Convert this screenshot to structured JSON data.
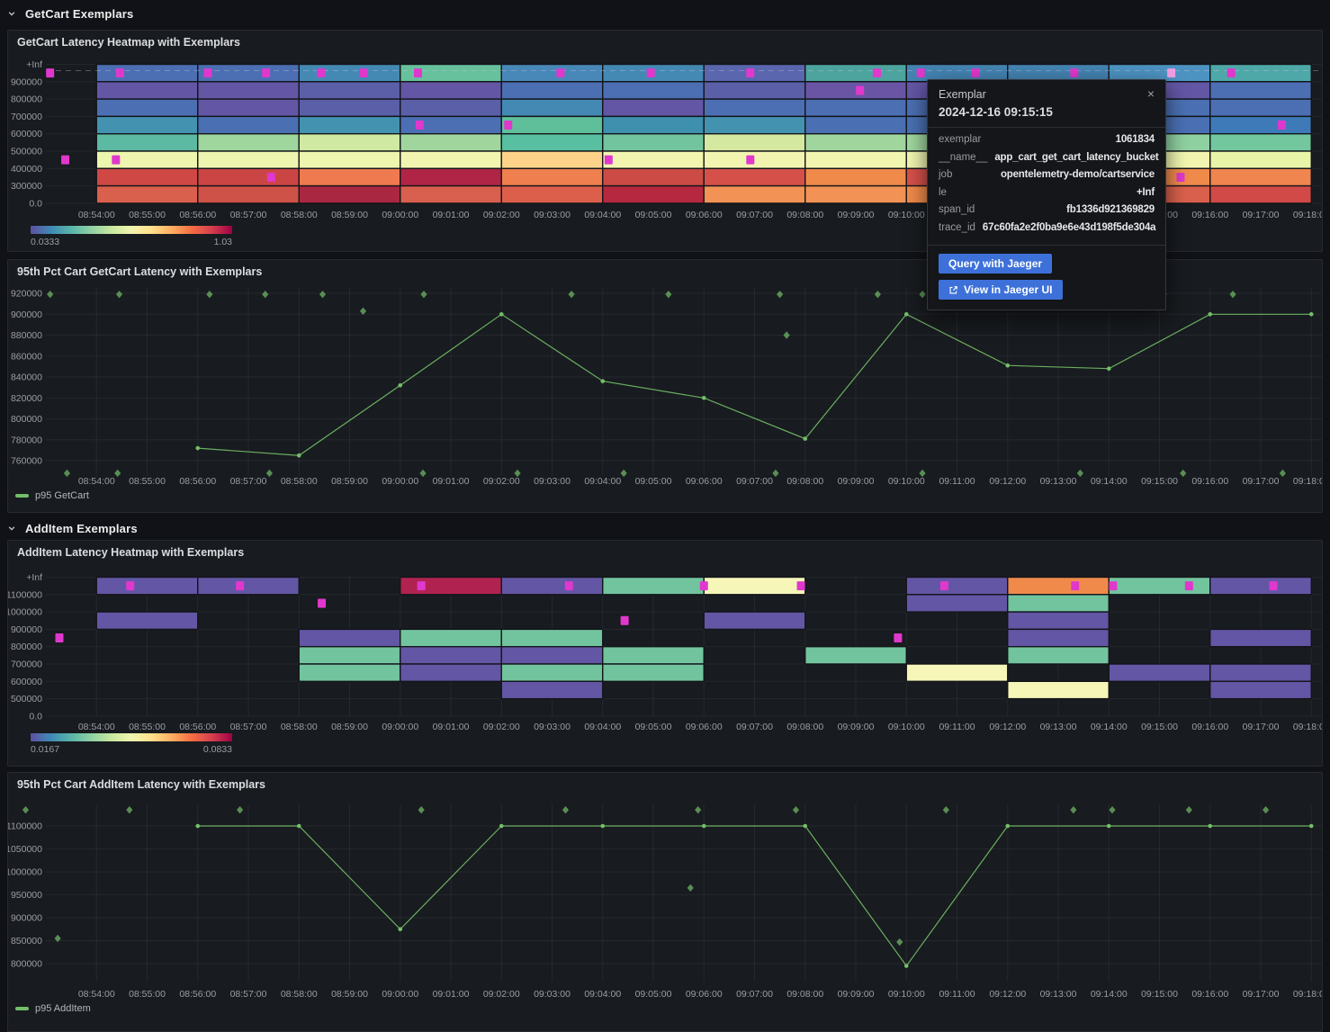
{
  "page": {
    "bg": "#111217",
    "accent": "#3d71d9",
    "series_green": "#73bf69",
    "exemplar_color": "#e038cd",
    "exemplar_highlight": "#f2a0e4"
  },
  "sections": [
    {
      "title": "GetCart Exemplars"
    },
    {
      "title": "AddItem Exemplars"
    }
  ],
  "time_axis": {
    "start": "08:53:00",
    "ticks": [
      "08:54:00",
      "08:55:00",
      "08:56:00",
      "08:57:00",
      "08:58:00",
      "08:59:00",
      "09:00:00",
      "09:01:00",
      "09:02:00",
      "09:03:00",
      "09:04:00",
      "09:05:00",
      "09:06:00",
      "09:07:00",
      "09:08:00",
      "09:09:00",
      "09:10:00",
      "09:11:00",
      "09:12:00",
      "09:13:00",
      "09:14:00",
      "09:15:00",
      "09:16:00",
      "09:17:00",
      "09:18:00"
    ]
  },
  "tooltip": {
    "title": "Exemplar",
    "timestamp": "2024-12-16 09:15:15",
    "close_label": "×",
    "fields": [
      {
        "label": "exemplar",
        "value": "1061834"
      },
      {
        "label": "__name__",
        "value": "app_cart_get_cart_latency_bucket"
      },
      {
        "label": "job",
        "value": "opentelemetry-demo/cartservice"
      },
      {
        "label": "le",
        "value": "+Inf"
      },
      {
        "label": "span_id",
        "value": "fb1336d921369829"
      },
      {
        "label": "trace_id",
        "value": "67c60fa2e2f0ba9e6e43d198f5de304a"
      }
    ],
    "buttons": [
      {
        "label": "Query with Jaeger"
      },
      {
        "label": "View in Jaeger UI",
        "icon": "external-link-icon"
      }
    ]
  },
  "chart_data": [
    {
      "type": "heatmap",
      "title": "GetCart Latency Heatmap with Exemplars",
      "y_ticks": [
        "+Inf",
        "900000",
        "800000",
        "700000",
        "600000",
        "500000",
        "400000",
        "300000",
        "0.0"
      ],
      "column_minutes": 2,
      "columns": [
        "08:54:00",
        "08:56:00",
        "08:58:00",
        "09:00:00",
        "09:02:00",
        "09:04:00",
        "09:06:00",
        "09:08:00",
        "09:10:00",
        "09:12:00",
        "09:14:00",
        "09:16:00"
      ],
      "cells": [
        [
          "#4c6fb3",
          "#4c6fb3",
          "#4489b3",
          "#67c19c",
          "#4888b8",
          "#4489b3",
          "#5a66ae",
          "#4da49e",
          "#4484b2",
          "#4484b2",
          "#4d93c2",
          "#4fa8a8"
        ],
        [
          "#6356a5",
          "#6356a5",
          "#5a5fa8",
          "#6356a5",
          "#4c6fb3",
          "#4c6fb3",
          "#5a5fa8",
          "#6a55a5",
          "#6356a5",
          "#6356a5",
          "#6356a5",
          "#4c6fb3"
        ],
        [
          "#4c6fb3",
          "#6356a5",
          "#5a5fa8",
          "#5a5fa8",
          "#4489b3",
          "#6356a5",
          "#4c6fb3",
          "#4c6fb3",
          "#4c6fb3",
          "#4c6fb3",
          "#4a70b3",
          "#4c6fb3"
        ],
        [
          "#4392b0",
          "#4a70b3",
          "#4392b0",
          "#4c6fb3",
          "#5fbf9a",
          "#3f8fae",
          "#4392b0",
          "#4a70b3",
          "#4a70b3",
          "#4392b0",
          "#4a70b3",
          "#3f7ab8"
        ],
        [
          "#5cb9a2",
          "#9ed69e",
          "#cfe8a2",
          "#a0d69e",
          "#58bfa0",
          "#72c49e",
          "#d4e8a0",
          "#a0d69e",
          "#a0d69e",
          "#5cb9a2",
          "#8fd0a0",
          "#72c79e"
        ],
        [
          "#eef5ae",
          "#eef5ae",
          "#eef5ae",
          "#f2f5b0",
          "#fdd389",
          "#f2f5b0",
          "#f2f5b0",
          "#f2f5b0",
          "#f2f5b0",
          "#f2f5b0",
          "#f2f5b0",
          "#e8f5a8"
        ],
        [
          "#cf4846",
          "#cc4545",
          "#ef7a50",
          "#b02545",
          "#ef7f4f",
          "#cc4b45",
          "#d6504a",
          "#f08a4b",
          "#d6504a",
          "#f08a4b",
          "#f08a4b",
          "#f0854f"
        ],
        [
          "#d9604c",
          "#cf5248",
          "#aa2742",
          "#d95f4e",
          "#dc5f4c",
          "#b5283f",
          "#f29355",
          "#f29355",
          "#f08a4b",
          "#d6504a",
          "#d9604c",
          "#d14a48"
        ]
      ],
      "exemplars": [
        {
          "t": "08:53:05",
          "row": 0
        },
        {
          "t": "08:54:28",
          "row": 0
        },
        {
          "t": "08:56:12",
          "row": 0
        },
        {
          "t": "08:57:21",
          "row": 0
        },
        {
          "t": "08:58:26",
          "row": 0
        },
        {
          "t": "08:59:17",
          "row": 0
        },
        {
          "t": "09:00:21",
          "row": 0
        },
        {
          "t": "09:03:10",
          "row": 0
        },
        {
          "t": "09:04:57",
          "row": 0
        },
        {
          "t": "09:06:55",
          "row": 0
        },
        {
          "t": "09:09:25",
          "row": 0
        },
        {
          "t": "09:10:17",
          "row": 0
        },
        {
          "t": "09:11:22",
          "row": 0
        },
        {
          "t": "09:13:19",
          "row": 0
        },
        {
          "t": "09:15:14",
          "row": 0,
          "highlight": true
        },
        {
          "t": "09:16:25",
          "row": 0
        },
        {
          "t": "09:09:05",
          "row": 1
        },
        {
          "t": "09:00:23",
          "row": 3
        },
        {
          "t": "09:02:08",
          "row": 3
        },
        {
          "t": "09:17:25",
          "row": 3
        },
        {
          "t": "08:53:23",
          "row": 5
        },
        {
          "t": "08:54:23",
          "row": 5
        },
        {
          "t": "09:04:07",
          "row": 5
        },
        {
          "t": "09:06:55",
          "row": 5
        },
        {
          "t": "08:57:27",
          "row": 6
        },
        {
          "t": "09:15:25",
          "row": 6
        }
      ],
      "dashed_marker_row": 0,
      "colorbar": {
        "min": "0.0333",
        "max": "1.03",
        "gradient": [
          "#5e4fa2",
          "#3f8ab5",
          "#58b5a9",
          "#8fd1a4",
          "#c7e89e",
          "#f2f5ae",
          "#fee08b",
          "#fdae61",
          "#f46d43",
          "#d53e4f",
          "#9e0142"
        ]
      }
    },
    {
      "type": "line",
      "title": "95th Pct Cart GetCart Latency with Exemplars",
      "y_ticks": [
        "920000",
        "900000",
        "880000",
        "860000",
        "840000",
        "820000",
        "800000",
        "780000",
        "760000"
      ],
      "series": [
        {
          "name": "p95 GetCart",
          "color": "#73bf69",
          "points": [
            [
              "08:56:00",
              772000
            ],
            [
              "08:58:00",
              765000
            ],
            [
              "09:00:00",
              832000
            ],
            [
              "09:02:00",
              900000
            ],
            [
              "09:04:00",
              836000
            ],
            [
              "09:06:00",
              820000
            ],
            [
              "09:08:00",
              781000
            ],
            [
              "09:10:00",
              900000
            ],
            [
              "09:12:00",
              851000
            ],
            [
              "09:14:00",
              848000
            ],
            [
              "09:16:00",
              900000
            ],
            [
              "09:18:00",
              900000
            ]
          ]
        }
      ],
      "exemplars": [
        {
          "t": "08:53:05",
          "v": 919000
        },
        {
          "t": "08:54:27",
          "v": 919000
        },
        {
          "t": "08:56:14",
          "v": 919000
        },
        {
          "t": "08:57:20",
          "v": 919000
        },
        {
          "t": "08:58:28",
          "v": 919000
        },
        {
          "t": "09:00:28",
          "v": 919000
        },
        {
          "t": "09:03:23",
          "v": 919000
        },
        {
          "t": "09:05:18",
          "v": 919000
        },
        {
          "t": "09:07:30",
          "v": 919000
        },
        {
          "t": "09:09:26",
          "v": 919000
        },
        {
          "t": "09:10:19",
          "v": 919000
        },
        {
          "t": "09:15:05",
          "v": 919000
        },
        {
          "t": "09:16:27",
          "v": 919000
        },
        {
          "t": "08:59:16",
          "v": 903000
        },
        {
          "t": "09:07:38",
          "v": 880000
        },
        {
          "t": "08:53:25",
          "v": 748000
        },
        {
          "t": "08:54:25",
          "v": 748000
        },
        {
          "t": "08:57:25",
          "v": 748000
        },
        {
          "t": "09:00:27",
          "v": 748000
        },
        {
          "t": "09:02:19",
          "v": 748000
        },
        {
          "t": "09:04:25",
          "v": 748000
        },
        {
          "t": "09:07:25",
          "v": 748000
        },
        {
          "t": "09:10:19",
          "v": 748000
        },
        {
          "t": "09:13:26",
          "v": 748000
        },
        {
          "t": "09:15:28",
          "v": 748000
        },
        {
          "t": "09:17:26",
          "v": 748000
        }
      ]
    },
    {
      "type": "heatmap",
      "title": "AddItem Latency Heatmap with Exemplars",
      "y_ticks": [
        "+Inf",
        "1100000",
        "1000000",
        "900000",
        "800000",
        "700000",
        "600000",
        "500000",
        "0.0"
      ],
      "column_minutes": 2,
      "columns": [
        "08:54:00",
        "08:56:00",
        "08:58:00",
        "09:00:00",
        "09:02:00",
        "09:04:00",
        "09:06:00",
        "09:08:00",
        "09:10:00",
        "09:12:00",
        "09:14:00",
        "09:16:00"
      ],
      "cells": [
        [
          "#6356a5",
          "#6356a5",
          null,
          "#b02350",
          "#6356a5",
          "#72c49e",
          "#f5f6b8",
          null,
          "#6356a5",
          "#f08a4b",
          "#72c49e",
          "#6356a5"
        ],
        [
          null,
          null,
          null,
          null,
          null,
          null,
          null,
          null,
          "#6356a5",
          "#72c49e",
          null,
          null
        ],
        [
          "#6356a5",
          null,
          null,
          null,
          null,
          null,
          "#6356a5",
          null,
          null,
          "#6356a5",
          null,
          null
        ],
        [
          null,
          null,
          "#6356a5",
          "#72c49e",
          "#72c49e",
          null,
          null,
          null,
          null,
          "#6356a5",
          null,
          "#6356a5"
        ],
        [
          null,
          null,
          "#72c49e",
          "#6356a5",
          "#6356a5",
          "#72c49e",
          null,
          "#72c49e",
          null,
          "#72c49e",
          null,
          null
        ],
        [
          null,
          null,
          "#72c49e",
          "#6356a5",
          "#72c49e",
          "#72c49e",
          null,
          null,
          "#f5f6b8",
          null,
          "#6356a5",
          "#6356a5"
        ],
        [
          null,
          null,
          null,
          null,
          "#6356a5",
          null,
          null,
          null,
          null,
          "#f5f6b8",
          null,
          "#6356a5"
        ],
        [
          null,
          null,
          null,
          null,
          null,
          null,
          null,
          null,
          null,
          null,
          null,
          null
        ]
      ],
      "exemplars": [
        {
          "t": "08:54:40",
          "row": 0
        },
        {
          "t": "08:56:50",
          "row": 0
        },
        {
          "t": "09:00:25",
          "row": 0
        },
        {
          "t": "09:03:20",
          "row": 0
        },
        {
          "t": "09:06:00",
          "row": 0
        },
        {
          "t": "09:07:55",
          "row": 0
        },
        {
          "t": "09:10:45",
          "row": 0
        },
        {
          "t": "09:13:20",
          "row": 0
        },
        {
          "t": "09:14:05",
          "row": 0
        },
        {
          "t": "09:15:35",
          "row": 0
        },
        {
          "t": "09:17:15",
          "row": 0
        },
        {
          "t": "08:58:27",
          "row": 1
        },
        {
          "t": "09:04:26",
          "row": 2
        },
        {
          "t": "08:53:16",
          "row": 3
        },
        {
          "t": "09:09:50",
          "row": 3
        }
      ],
      "colorbar": {
        "min": "0.0167",
        "max": "0.0833",
        "gradient": [
          "#5e4fa2",
          "#3f8ab5",
          "#58b5a9",
          "#8fd1a4",
          "#c7e89e",
          "#f2f5ae",
          "#fee08b",
          "#fdae61",
          "#f46d43",
          "#d53e4f",
          "#9e0142"
        ]
      }
    },
    {
      "type": "line",
      "title": "95th Pct Cart AddItem Latency with Exemplars",
      "y_ticks": [
        "1100000",
        "1050000",
        "1000000",
        "950000",
        "900000",
        "850000",
        "800000"
      ],
      "series": [
        {
          "name": "p95 AddItem",
          "color": "#73bf69",
          "points": [
            [
              "08:56:00",
              1100000
            ],
            [
              "08:58:00",
              1100000
            ],
            [
              "09:00:00",
              875000
            ],
            [
              "09:02:00",
              1100000
            ],
            [
              "09:04:00",
              1100000
            ],
            [
              "09:06:00",
              1100000
            ],
            [
              "09:08:00",
              1100000
            ],
            [
              "09:10:00",
              795000
            ],
            [
              "09:12:00",
              1100000
            ],
            [
              "09:14:00",
              1100000
            ],
            [
              "09:16:00",
              1100000
            ],
            [
              "09:18:00",
              1100000
            ]
          ]
        }
      ],
      "exemplars": [
        {
          "t": "08:52:36",
          "v": 1135000
        },
        {
          "t": "08:54:39",
          "v": 1135000
        },
        {
          "t": "08:56:50",
          "v": 1135000
        },
        {
          "t": "09:00:25",
          "v": 1135000
        },
        {
          "t": "09:03:16",
          "v": 1135000
        },
        {
          "t": "09:05:53",
          "v": 1135000
        },
        {
          "t": "09:07:49",
          "v": 1135000
        },
        {
          "t": "09:10:47",
          "v": 1135000
        },
        {
          "t": "09:13:18",
          "v": 1135000
        },
        {
          "t": "09:14:04",
          "v": 1135000
        },
        {
          "t": "09:15:35",
          "v": 1135000
        },
        {
          "t": "09:17:06",
          "v": 1135000
        },
        {
          "t": "08:53:14",
          "v": 855000
        },
        {
          "t": "09:05:44",
          "v": 965000
        },
        {
          "t": "09:09:52",
          "v": 847000
        }
      ]
    }
  ]
}
